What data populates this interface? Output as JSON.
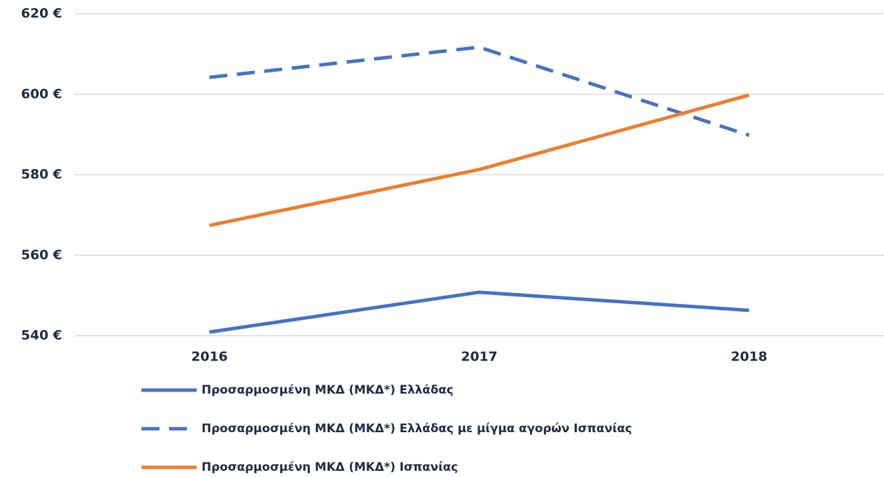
{
  "chart_data": {
    "type": "line",
    "categories": [
      "2016",
      "2017",
      "2018"
    ],
    "series": [
      {
        "name": "Προσαρμοσμένη ΜΚΔ (ΜΚΔ*) Ελλάδας",
        "color": "#4472c4",
        "style": "solid",
        "values": [
          540.9,
          550.8,
          546.3
        ]
      },
      {
        "name": "Προσαρμοσμένη ΜΚΔ (ΜΚΔ*) Ελλάδας με μίγμα αγορών Ισπανίας",
        "color": "#4472c4",
        "style": "dashed",
        "values": [
          604.2,
          611.7,
          589.8
        ]
      },
      {
        "name": "Προσαρμοσμένη ΜΚΔ (ΜΚΔ*) Ισπανίας",
        "color": "#ed7d31",
        "style": "solid",
        "values": [
          567.4,
          581.3,
          599.8
        ]
      }
    ],
    "ylim": [
      540,
      620
    ],
    "yticks": [
      {
        "value": 540,
        "label": "540 €"
      },
      {
        "value": 560,
        "label": "560 €"
      },
      {
        "value": 580,
        "label": "580 €"
      },
      {
        "value": 600,
        "label": "600 €"
      },
      {
        "value": 620,
        "label": "620 €"
      }
    ],
    "grid": true
  }
}
